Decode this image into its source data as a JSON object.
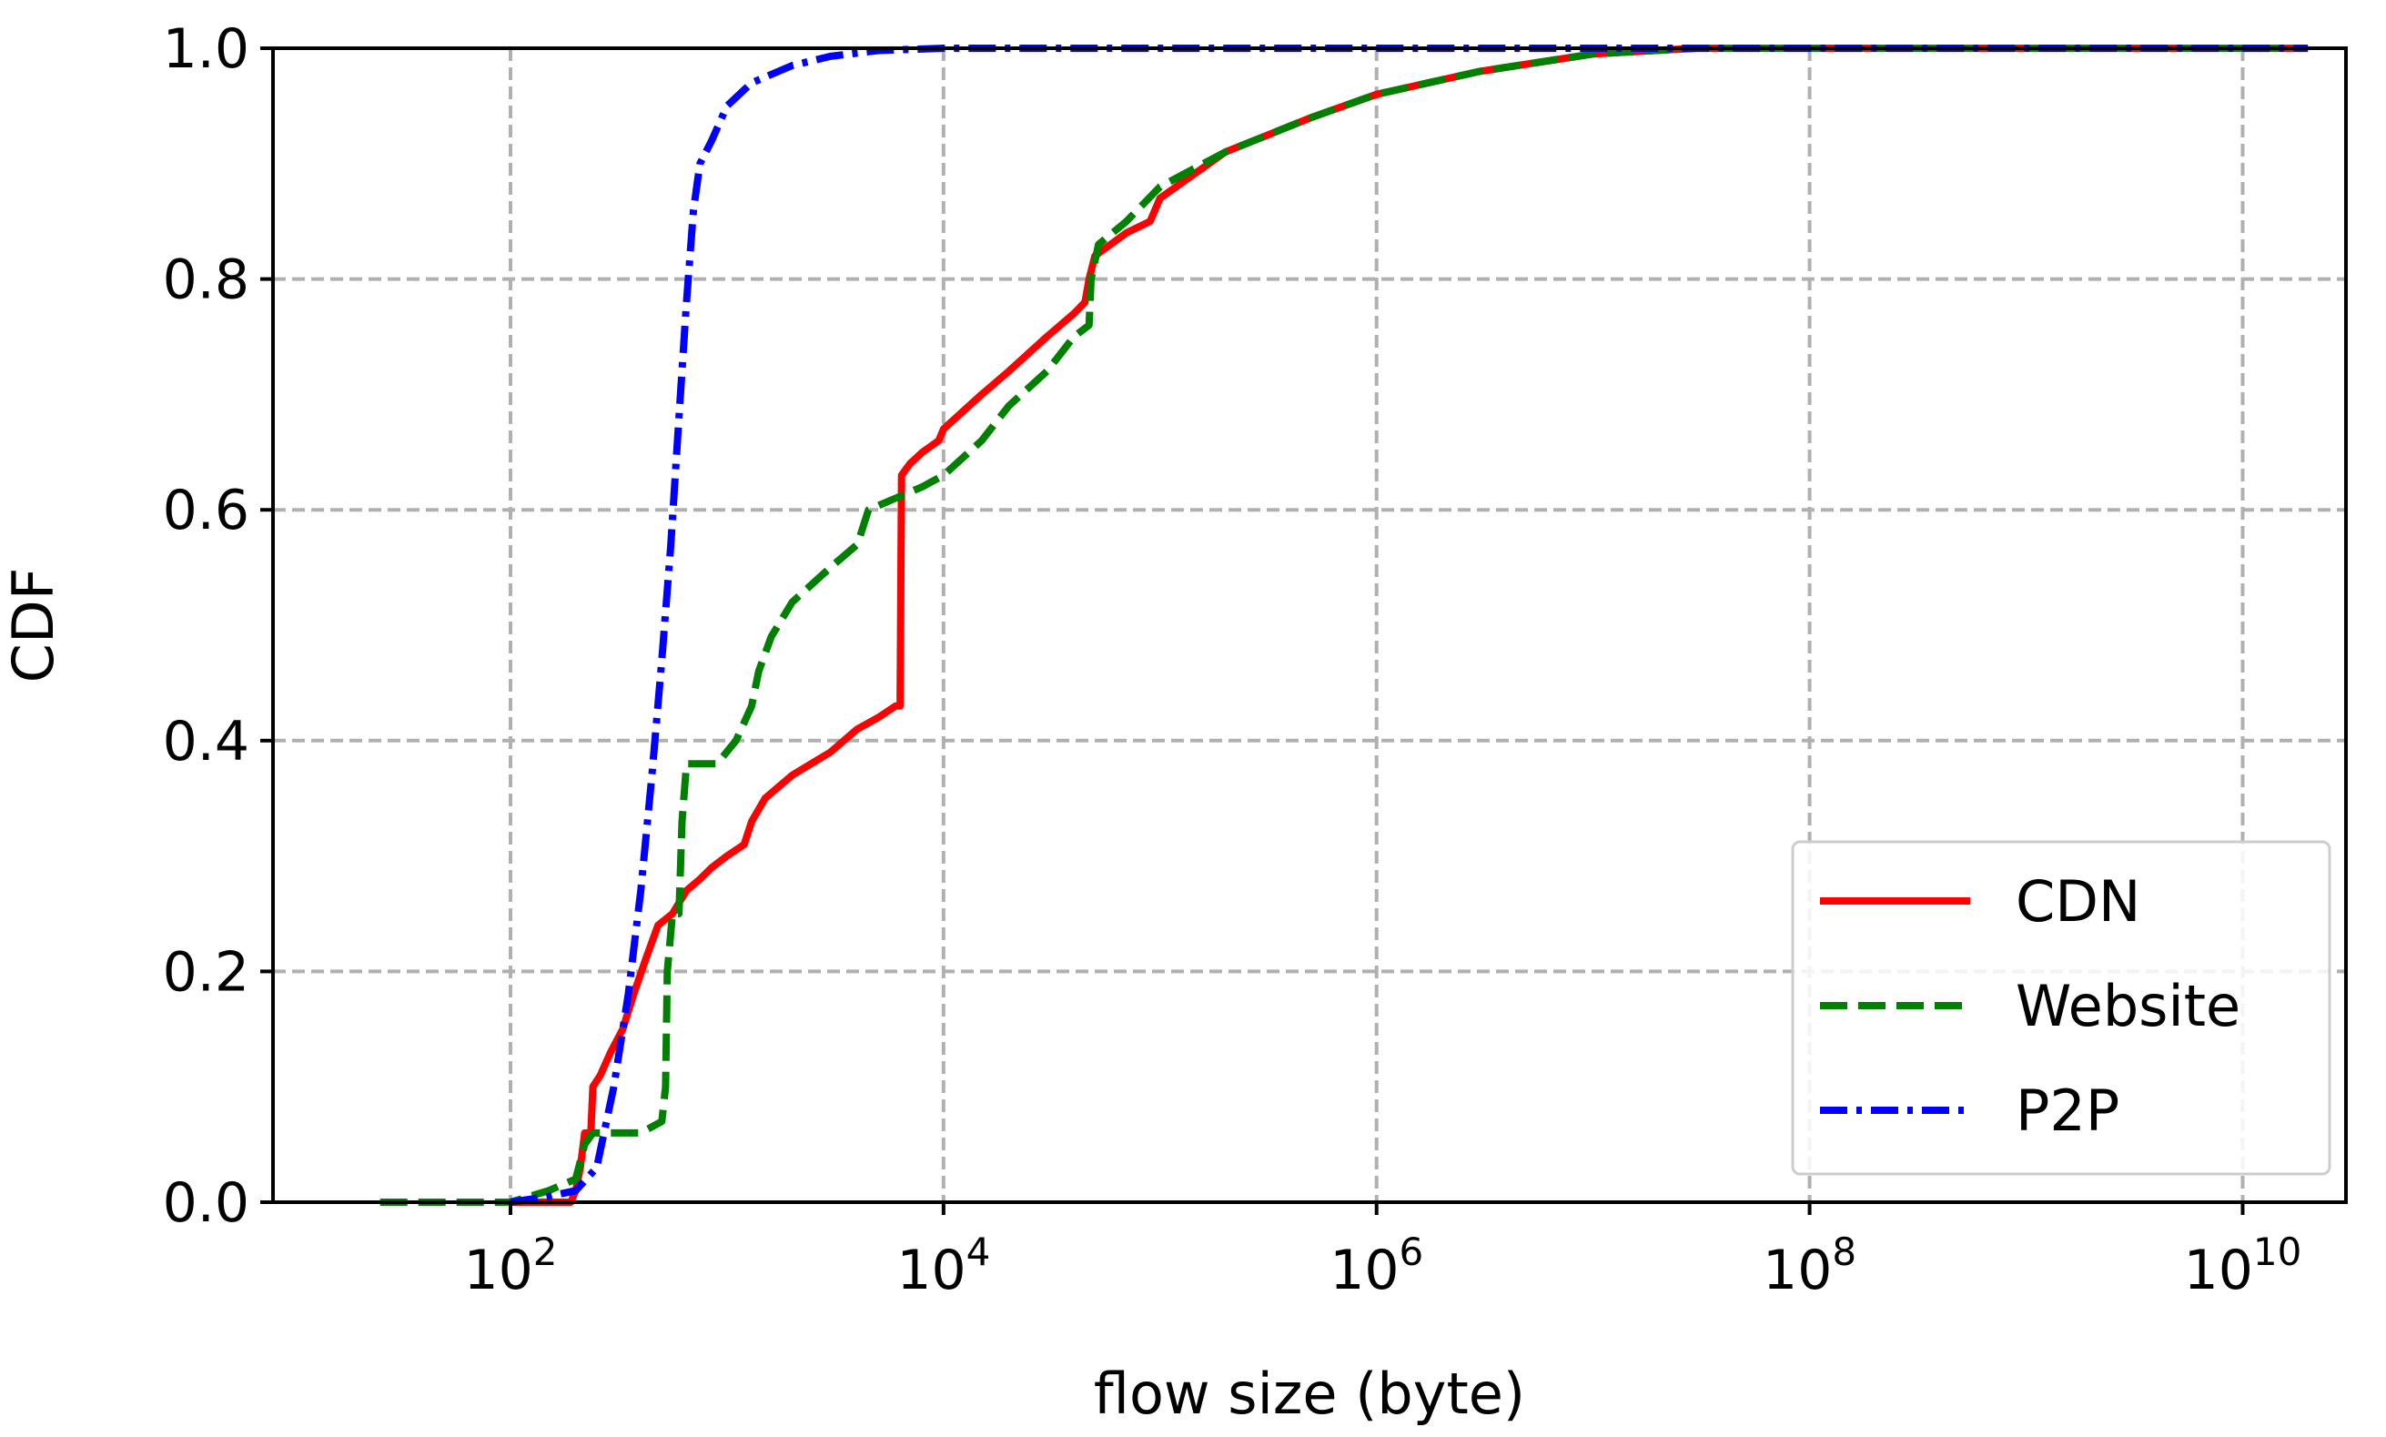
{
  "chart_data": {
    "type": "line",
    "title": "",
    "xlabel": "flow size (byte)",
    "ylabel": "CDF",
    "xscale": "log",
    "xlim": [
      8,
      30000000000
    ],
    "ylim": [
      0,
      1.0
    ],
    "grid": true,
    "legend_position": "bottom-right",
    "x_ticks": [
      {
        "value": 100,
        "base": "10",
        "exp": "2"
      },
      {
        "value": 10000,
        "base": "10",
        "exp": "4"
      },
      {
        "value": 1000000,
        "base": "10",
        "exp": "6"
      },
      {
        "value": 100000000,
        "base": "10",
        "exp": "8"
      },
      {
        "value": 10000000000,
        "base": "10",
        "exp": "10"
      }
    ],
    "y_ticks": [
      {
        "value": 0.0,
        "label": "0.0"
      },
      {
        "value": 0.2,
        "label": "0.2"
      },
      {
        "value": 0.4,
        "label": "0.4"
      },
      {
        "value": 0.6,
        "label": "0.6"
      },
      {
        "value": 0.8,
        "label": "0.8"
      },
      {
        "value": 1.0,
        "label": "1.0"
      }
    ],
    "series": [
      {
        "name": "CDN",
        "color": "#ff0000",
        "style": "solid",
        "points": [
          [
            100,
            0.0
          ],
          [
            190,
            0.0
          ],
          [
            200,
            0.01
          ],
          [
            210,
            0.03
          ],
          [
            220,
            0.06
          ],
          [
            235,
            0.06
          ],
          [
            240,
            0.1
          ],
          [
            260,
            0.11
          ],
          [
            290,
            0.13
          ],
          [
            330,
            0.15
          ],
          [
            370,
            0.18
          ],
          [
            420,
            0.21
          ],
          [
            480,
            0.24
          ],
          [
            560,
            0.25
          ],
          [
            650,
            0.27
          ],
          [
            750,
            0.28
          ],
          [
            850,
            0.29
          ],
          [
            1000,
            0.3
          ],
          [
            1200,
            0.31
          ],
          [
            1300,
            0.33
          ],
          [
            1500,
            0.35
          ],
          [
            2000,
            0.37
          ],
          [
            3000,
            0.39
          ],
          [
            4000,
            0.41
          ],
          [
            5000,
            0.42
          ],
          [
            6000,
            0.43
          ],
          [
            6300,
            0.43
          ],
          [
            6400,
            0.63
          ],
          [
            7000,
            0.64
          ],
          [
            8000,
            0.65
          ],
          [
            9500,
            0.66
          ],
          [
            10000,
            0.67
          ],
          [
            15000,
            0.7
          ],
          [
            20000,
            0.72
          ],
          [
            30000,
            0.75
          ],
          [
            40000,
            0.77
          ],
          [
            45000,
            0.78
          ],
          [
            47000,
            0.8
          ],
          [
            50000,
            0.82
          ],
          [
            70000,
            0.84
          ],
          [
            90000,
            0.85
          ],
          [
            100000,
            0.87
          ],
          [
            200000,
            0.91
          ],
          [
            500000,
            0.94
          ],
          [
            1000000,
            0.96
          ],
          [
            3000000,
            0.98
          ],
          [
            10000000,
            0.995
          ],
          [
            30000000,
            1.0
          ],
          [
            20000000000,
            1.0
          ]
        ]
      },
      {
        "name": "Website",
        "color": "#008000",
        "style": "dashed",
        "points": [
          [
            25,
            0.0
          ],
          [
            100,
            0.0
          ],
          [
            150,
            0.01
          ],
          [
            200,
            0.02
          ],
          [
            220,
            0.05
          ],
          [
            240,
            0.06
          ],
          [
            300,
            0.06
          ],
          [
            400,
            0.06
          ],
          [
            500,
            0.07
          ],
          [
            520,
            0.1
          ],
          [
            530,
            0.2
          ],
          [
            560,
            0.25
          ],
          [
            600,
            0.25
          ],
          [
            620,
            0.33
          ],
          [
            650,
            0.38
          ],
          [
            700,
            0.38
          ],
          [
            900,
            0.38
          ],
          [
            1100,
            0.4
          ],
          [
            1300,
            0.43
          ],
          [
            1400,
            0.46
          ],
          [
            1600,
            0.49
          ],
          [
            2000,
            0.52
          ],
          [
            3000,
            0.55
          ],
          [
            4000,
            0.57
          ],
          [
            4500,
            0.6
          ],
          [
            6000,
            0.61
          ],
          [
            8000,
            0.62
          ],
          [
            10000,
            0.63
          ],
          [
            15000,
            0.66
          ],
          [
            20000,
            0.69
          ],
          [
            30000,
            0.72
          ],
          [
            40000,
            0.75
          ],
          [
            47000,
            0.76
          ],
          [
            48000,
            0.8
          ],
          [
            52000,
            0.83
          ],
          [
            70000,
            0.85
          ],
          [
            100000,
            0.88
          ],
          [
            200000,
            0.91
          ],
          [
            500000,
            0.94
          ],
          [
            1000000,
            0.96
          ],
          [
            3000000,
            0.98
          ],
          [
            10000000,
            0.995
          ],
          [
            30000000,
            1.0
          ],
          [
            20000000000,
            1.0
          ]
        ]
      },
      {
        "name": "P2P",
        "color": "#0000ff",
        "style": "dashdot",
        "points": [
          [
            100,
            0.0
          ],
          [
            150,
            0.005
          ],
          [
            200,
            0.01
          ],
          [
            250,
            0.03
          ],
          [
            300,
            0.1
          ],
          [
            350,
            0.18
          ],
          [
            400,
            0.27
          ],
          [
            450,
            0.37
          ],
          [
            500,
            0.47
          ],
          [
            550,
            0.57
          ],
          [
            600,
            0.68
          ],
          [
            650,
            0.78
          ],
          [
            700,
            0.86
          ],
          [
            750,
            0.9
          ],
          [
            850,
            0.92
          ],
          [
            1000,
            0.95
          ],
          [
            1300,
            0.97
          ],
          [
            2000,
            0.985
          ],
          [
            3000,
            0.993
          ],
          [
            5000,
            0.998
          ],
          [
            10000,
            1.0
          ],
          [
            20000000000,
            1.0
          ]
        ]
      }
    ]
  }
}
